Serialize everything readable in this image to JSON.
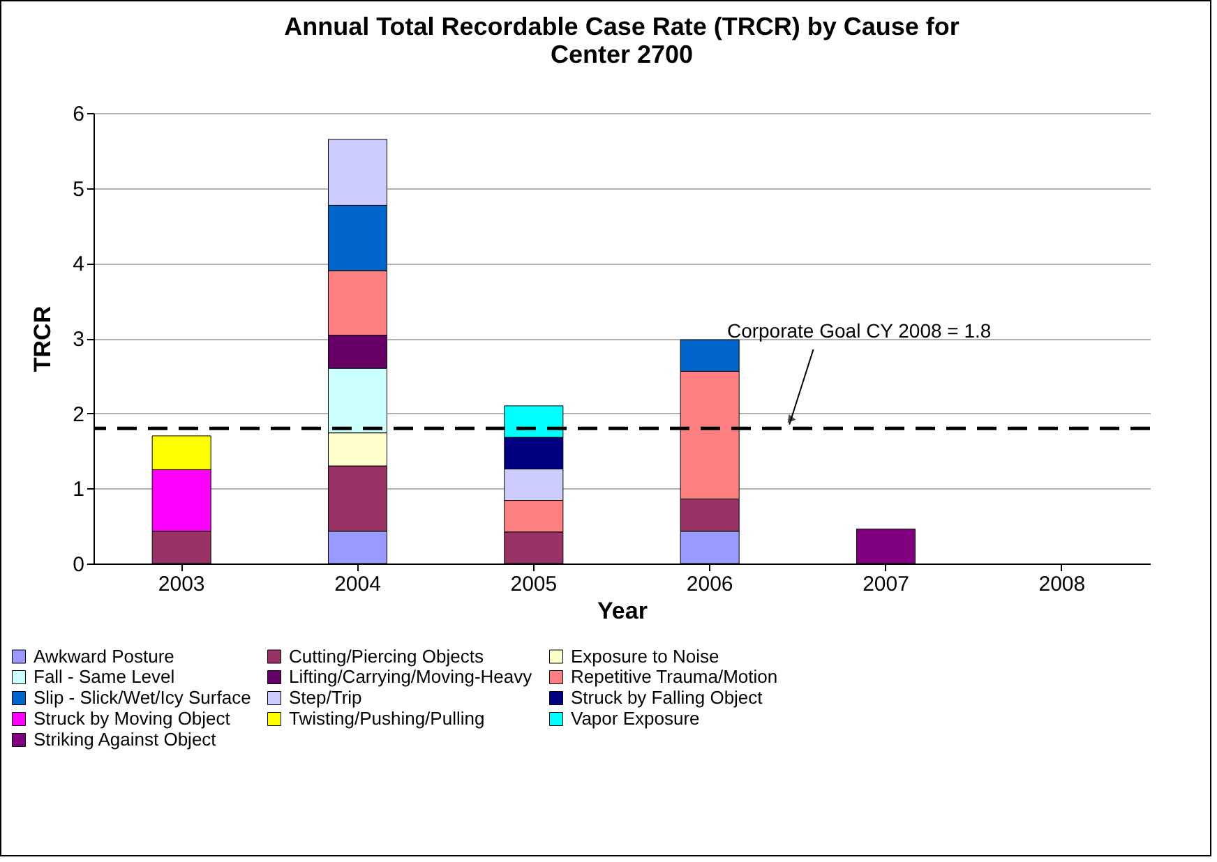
{
  "chart_data": {
    "type": "bar",
    "title": "Annual Total Recordable Case Rate (TRCR) by Cause for Center 2700",
    "xlabel": "Year",
    "ylabel": "TRCR",
    "categories": [
      "2003",
      "2004",
      "2005",
      "2006",
      "2007",
      "2008"
    ],
    "stacked": true,
    "ylim": [
      0,
      6
    ],
    "yticks": [
      0,
      1,
      2,
      3,
      4,
      5,
      6
    ],
    "grid": "y",
    "legend": "bottom",
    "series": [
      {
        "name": "Awkward Posture",
        "color": "#9999ff",
        "values": [
          null,
          0.43,
          null,
          0.43,
          null,
          null
        ]
      },
      {
        "name": "Cutting/Piercing Objects",
        "color": "#993366",
        "values": [
          0.43,
          0.87,
          0.42,
          0.43,
          null,
          null
        ]
      },
      {
        "name": "Exposure to Noise",
        "color": "#ffffcc",
        "values": [
          null,
          0.44,
          null,
          null,
          null,
          null
        ]
      },
      {
        "name": "Fall - Same Level",
        "color": "#ccffff",
        "values": [
          null,
          0.86,
          null,
          null,
          null,
          null
        ]
      },
      {
        "name": "Lifting/Carrying/Moving-Heavy",
        "color": "#660066",
        "values": [
          null,
          0.44,
          null,
          null,
          null,
          null
        ]
      },
      {
        "name": "Repetitive Trauma/Motion",
        "color": "#ff8080",
        "values": [
          null,
          0.86,
          0.42,
          1.7,
          null,
          null
        ]
      },
      {
        "name": "Slip - Slick/Wet/Icy Surface",
        "color": "#0066cc",
        "values": [
          null,
          0.87,
          null,
          0.42,
          null,
          null
        ]
      },
      {
        "name": "Step/Trip",
        "color": "#ccccff",
        "values": [
          null,
          0.88,
          0.42,
          null,
          null,
          null
        ]
      },
      {
        "name": "Struck by Falling Object",
        "color": "#000080",
        "values": [
          null,
          null,
          0.42,
          null,
          null,
          null
        ]
      },
      {
        "name": "Struck by Moving Object",
        "color": "#ff00ff",
        "values": [
          0.82,
          null,
          null,
          null,
          null,
          null
        ]
      },
      {
        "name": "Twisting/Pushing/Pulling",
        "color": "#ffff00",
        "values": [
          0.45,
          null,
          null,
          null,
          null,
          null
        ]
      },
      {
        "name": "Vapor Exposure",
        "color": "#00ffff",
        "values": [
          null,
          null,
          0.42,
          null,
          null,
          null
        ]
      },
      {
        "name": "Striking Against Object",
        "color": "#800080",
        "values": [
          null,
          null,
          null,
          null,
          0.46,
          null
        ]
      }
    ],
    "ref_lines": [
      {
        "axis": "y",
        "value": 1.8,
        "label": "Corporate Goal CY 2008 = 1.8",
        "line_style": "dashed",
        "color": "#000000"
      }
    ]
  }
}
